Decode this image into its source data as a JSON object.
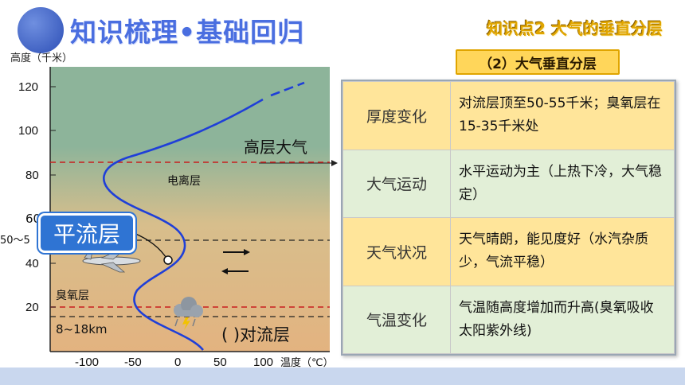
{
  "header": {
    "title": "知识梳理•基础回归",
    "knowledge_point": "知识点2  大气的垂直分层",
    "subtitle": "（2）大气垂直分层"
  },
  "figure": {
    "y_axis_label": "高度（千米）",
    "x_axis_label": "温度（℃）",
    "y_ticks": [
      "120",
      "100",
      "80",
      "60",
      "40",
      "20"
    ],
    "x_ticks": [
      "-100",
      "-50",
      "0",
      "50",
      "100"
    ],
    "left_stub_60": "60",
    "left_stub_50": "50～5",
    "upper_layer_label": "高层大气",
    "ionosphere_label": "电离层",
    "stratosphere_label": "平流层",
    "ozone_label": "臭氧层",
    "troposphere_height": "8~18km",
    "troposphere_label": "(    )对流层",
    "colors": {
      "sky_top": "#8db49a",
      "ground": "#e3b380",
      "curve": "#1f3fd8",
      "red_dash": "#c81e1e"
    }
  },
  "chart_data": {
    "type": "line",
    "xlabel": "温度（℃）",
    "ylabel": "高度（千米）",
    "xlim": [
      -140,
      160
    ],
    "ylim": [
      0,
      125
    ],
    "series": [
      {
        "x": [
          30,
          22,
          10,
          -5,
          -28,
          -45,
          -47,
          -45,
          -28,
          -8,
          5,
          10,
          5,
          -5,
          -22,
          -48,
          -70,
          -83,
          -83,
          -75,
          -40,
          10,
          60,
          95,
          110,
          130
        ],
        "y": [
          0,
          3,
          6,
          9,
          12,
          15,
          18,
          20,
          25,
          30,
          35,
          40,
          45,
          50,
          55,
          62,
          70,
          78,
          82,
          85,
          92,
          100,
          108,
          113,
          116,
          121
        ]
      }
    ],
    "reference_lines_km": [
      86,
      50,
      20,
      17
    ]
  },
  "table": {
    "rows": [
      {
        "label": "厚度变化",
        "text": "对流层顶至50-55千米；臭氧层在15-35千米处"
      },
      {
        "label": "大气运动",
        "text": "水平运动为主（上热下冷，大气稳定）"
      },
      {
        "label": "天气状况",
        "text": "天气晴朗，能见度好（水汽杂质少，气流平稳）"
      },
      {
        "label": "气温变化",
        "text": "气温随高度增加而升高(臭氧吸收太阳紫外线)"
      }
    ]
  }
}
